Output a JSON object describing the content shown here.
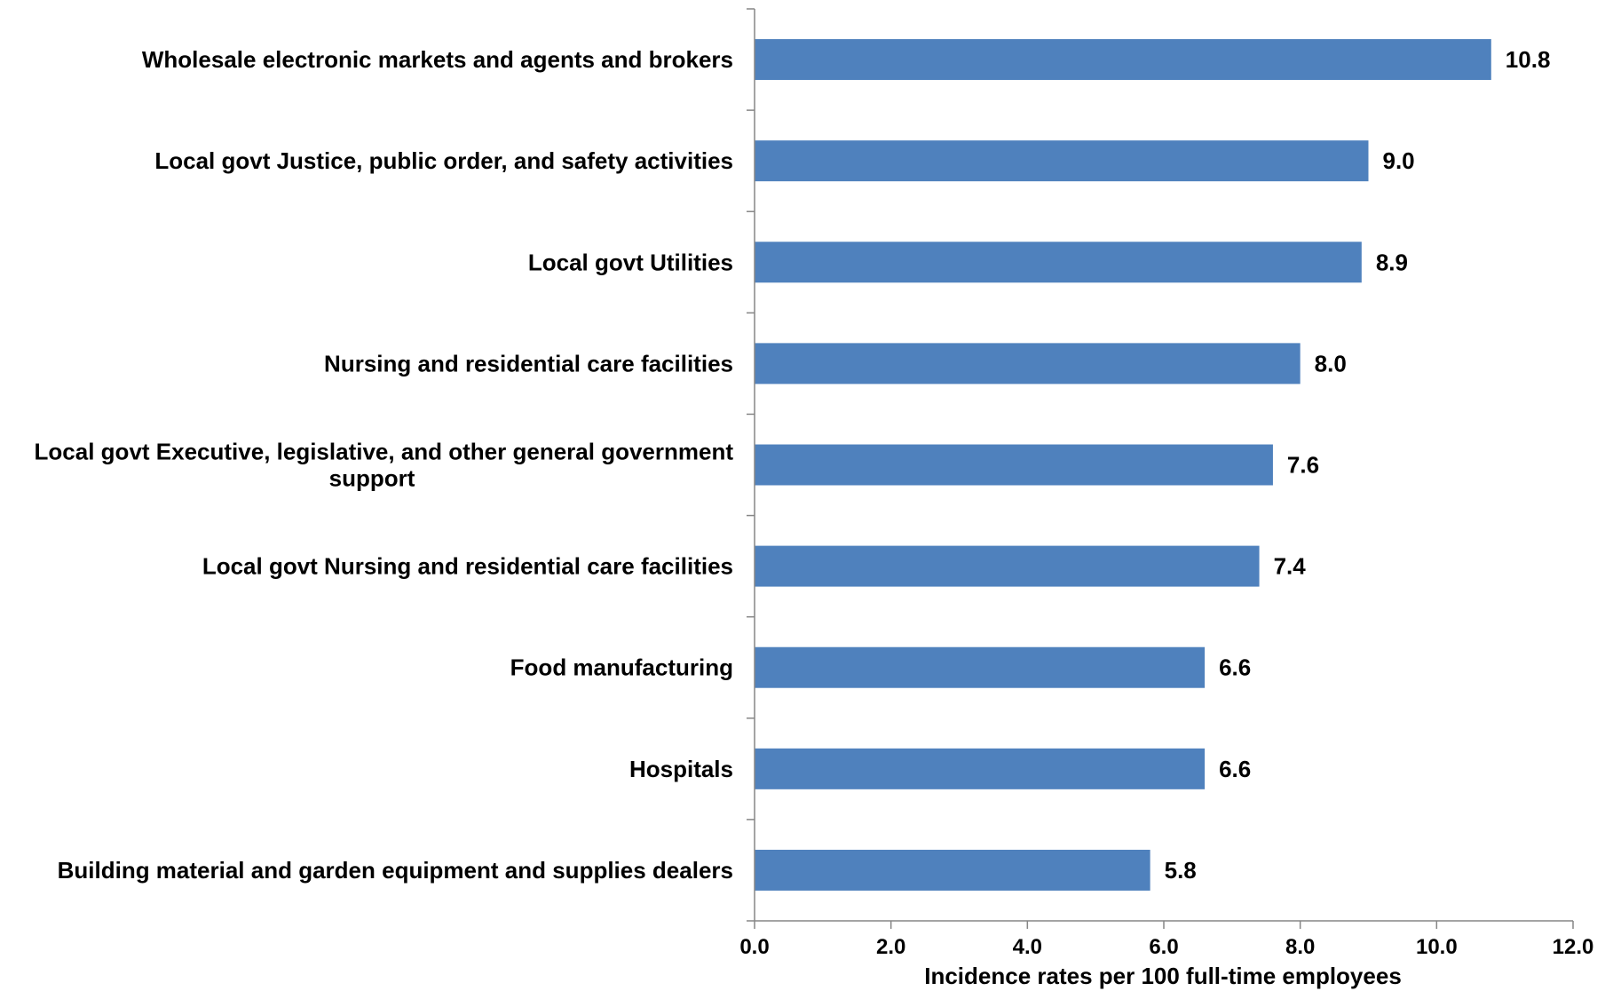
{
  "chart_data": {
    "type": "bar",
    "orientation": "horizontal",
    "categories": [
      "Wholesale electronic markets and agents and brokers",
      "Local govt Justice, public order, and safety activities",
      "Local govt Utilities",
      "Nursing and residential care facilities",
      "Local govt Executive, legislative, and other general government support",
      "Local govt Nursing and residential care facilities",
      "Food manufacturing",
      "Hospitals",
      "Building material and garden equipment and supplies dealers"
    ],
    "values": [
      10.8,
      9.0,
      8.9,
      8.0,
      7.6,
      7.4,
      6.6,
      6.6,
      5.8
    ],
    "value_labels": [
      "10.8",
      "9.0",
      "8.9",
      "8.0",
      "7.6",
      "7.4",
      "6.6",
      "6.6",
      "5.8"
    ],
    "xlabel": "Incidence rates per 100 full-time employees",
    "ylabel": "",
    "title": "",
    "xlim": [
      0,
      12
    ],
    "xticks": [
      "0.0",
      "2.0",
      "4.0",
      "6.0",
      "8.0",
      "10.0",
      "12.0"
    ],
    "grid": false,
    "legend": "none",
    "bar_color": "#4F81BD",
    "axis_color": "#868686"
  }
}
